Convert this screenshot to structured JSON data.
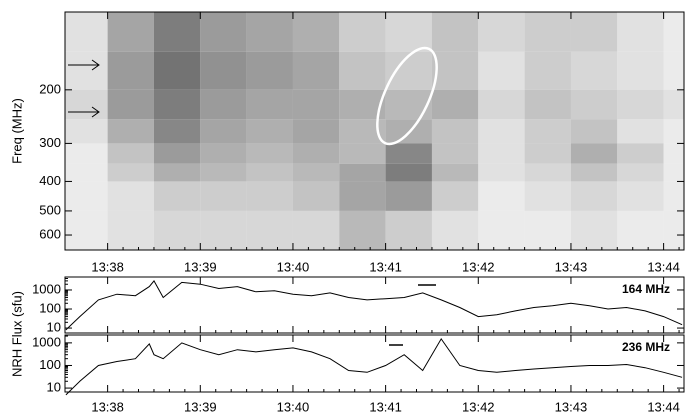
{
  "chart_data": [
    {
      "type": "spectrogram",
      "ylabel": "Freq (MHz)",
      "log": true,
      "yreverse": true,
      "colormap": "gray",
      "xlim": [
        817.54,
        824.22
      ],
      "ylim": [
        111,
        672
      ],
      "xticks": [
        {
          "value": 818,
          "label": "13:38"
        },
        {
          "value": 819,
          "label": "13:39"
        },
        {
          "value": 820,
          "label": "13:40"
        },
        {
          "value": 821,
          "label": "13:41"
        },
        {
          "value": 822,
          "label": "13:42"
        },
        {
          "value": 823,
          "label": "13:43"
        },
        {
          "value": 824,
          "label": "13:44"
        }
      ],
      "yticks": [
        200,
        300,
        400,
        500,
        600
      ],
      "x_edges": [
        817.54,
        818,
        818.5,
        819,
        819.5,
        820,
        820.5,
        821,
        821.5,
        822,
        822.5,
        823,
        823.5,
        824,
        824.22
      ],
      "y_edges": [
        111,
        150,
        200,
        250,
        300,
        350,
        400,
        500,
        672
      ],
      "values": [
        [
          10,
          40,
          60,
          45,
          40,
          35,
          20,
          15,
          25,
          15,
          20,
          20,
          10,
          5
        ],
        [
          10,
          45,
          65,
          50,
          45,
          40,
          25,
          20,
          25,
          10,
          20,
          15,
          10,
          5
        ],
        [
          15,
          45,
          60,
          45,
          40,
          40,
          35,
          30,
          35,
          15,
          25,
          20,
          15,
          10
        ],
        [
          10,
          35,
          55,
          40,
          35,
          40,
          30,
          35,
          25,
          10,
          20,
          25,
          10,
          5
        ],
        [
          5,
          25,
          45,
          35,
          30,
          35,
          30,
          55,
          25,
          10,
          20,
          35,
          20,
          5
        ],
        [
          5,
          20,
          35,
          30,
          25,
          30,
          40,
          60,
          30,
          10,
          15,
          25,
          15,
          5
        ],
        [
          5,
          10,
          20,
          20,
          20,
          25,
          40,
          45,
          20,
          5,
          10,
          15,
          10,
          5
        ],
        [
          5,
          10,
          15,
          15,
          15,
          15,
          30,
          20,
          10,
          5,
          5,
          10,
          5,
          5
        ]
      ]
    },
    {
      "type": "line",
      "ylabel": "NRH Flux (sfu)",
      "log": true,
      "xlim": [
        817.54,
        824.22
      ],
      "ylim": [
        5.5,
        4800
      ],
      "yticks": [
        10,
        100,
        1000
      ],
      "x": [
        817.55,
        817.7,
        817.9,
        818.1,
        818.3,
        818.45,
        818.5,
        818.6,
        818.8,
        819.0,
        819.2,
        819.4,
        819.6,
        819.8,
        820.0,
        820.2,
        820.4,
        820.6,
        820.8,
        821.0,
        821.2,
        821.4,
        821.6,
        821.8,
        822.0,
        822.2,
        822.4,
        822.6,
        822.8,
        823.0,
        823.2,
        823.4,
        823.6,
        823.8,
        824.0,
        824.2
      ],
      "series": [
        {
          "name": "164 MHz",
          "color": "#000000",
          "values": [
            8,
            40,
            300,
            600,
            500,
            1500,
            3000,
            400,
            2500,
            2000,
            1200,
            1500,
            800,
            900,
            600,
            500,
            700,
            400,
            300,
            350,
            400,
            700,
            300,
            120,
            40,
            50,
            80,
            120,
            150,
            200,
            150,
            100,
            120,
            80,
            40,
            15
          ]
        }
      ]
    },
    {
      "type": "line",
      "log": true,
      "xlim": [
        817.54,
        824.22
      ],
      "ylim": [
        6.7,
        2230
      ],
      "yticks": [
        10,
        100,
        1000
      ],
      "xticks": [
        {
          "value": 818,
          "label": "13:38"
        },
        {
          "value": 819,
          "label": "13:39"
        },
        {
          "value": 820,
          "label": "13:40"
        },
        {
          "value": 821,
          "label": "13:41"
        },
        {
          "value": 822,
          "label": "13:42"
        },
        {
          "value": 823,
          "label": "13:43"
        },
        {
          "value": 824,
          "label": "13:44"
        }
      ],
      "x": [
        817.55,
        817.7,
        817.9,
        818.1,
        818.3,
        818.45,
        818.5,
        818.6,
        818.8,
        819.0,
        819.2,
        819.4,
        819.6,
        819.8,
        820.0,
        820.2,
        820.4,
        820.6,
        820.8,
        821.0,
        821.2,
        821.4,
        821.6,
        821.8,
        822.0,
        822.2,
        822.4,
        822.6,
        822.8,
        823.0,
        823.2,
        823.4,
        823.6,
        823.8,
        824.0,
        824.2
      ],
      "series": [
        {
          "name": "236 MHz",
          "color": "#000000",
          "values": [
            5,
            20,
            100,
            150,
            200,
            900,
            300,
            200,
            1000,
            500,
            300,
            500,
            400,
            500,
            600,
            400,
            200,
            60,
            50,
            100,
            300,
            60,
            1500,
            100,
            60,
            50,
            60,
            70,
            80,
            90,
            100,
            100,
            110,
            80,
            50,
            30
          ]
        }
      ]
    }
  ]
}
